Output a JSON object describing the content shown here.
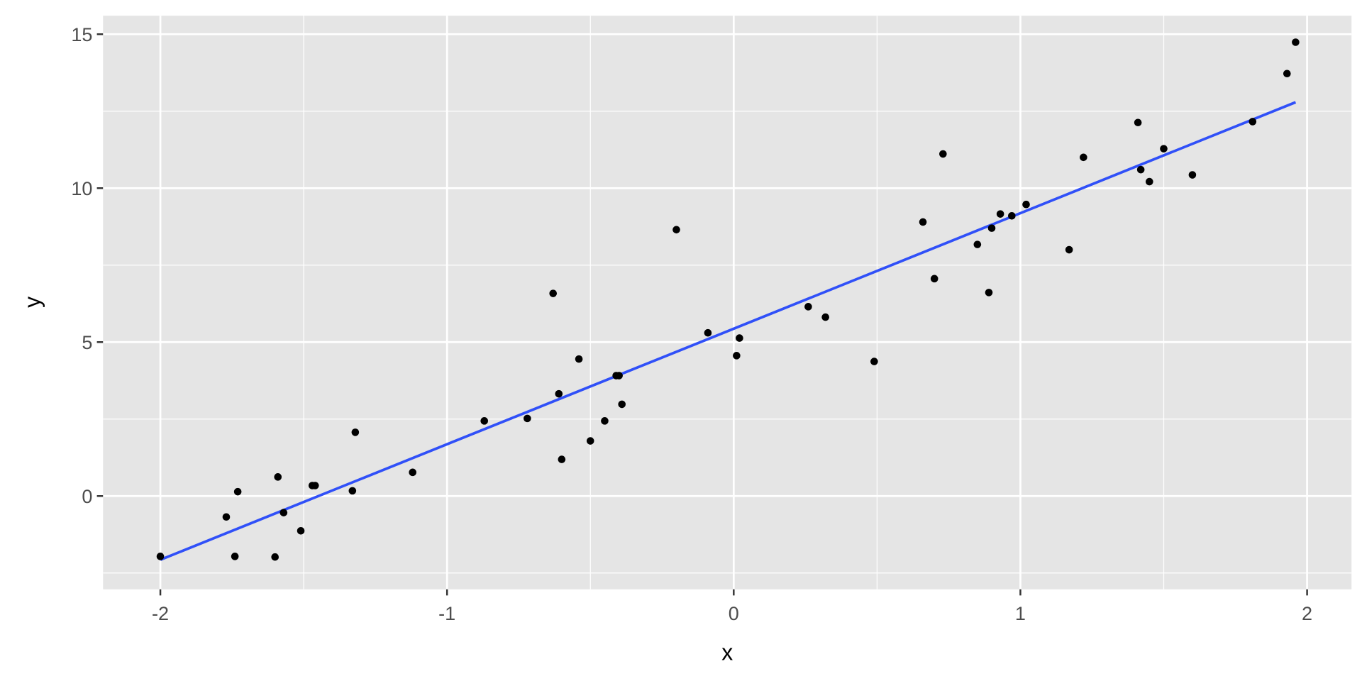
{
  "chart_data": {
    "type": "scatter",
    "title": "",
    "xlabel": "x",
    "ylabel": "y",
    "xlim": [
      -2.2,
      2.155
    ],
    "ylim": [
      -3.03,
      15.6
    ],
    "grid": true,
    "x_ticks": [
      -2,
      -1,
      0,
      1,
      2
    ],
    "x_tick_labels": [
      "-2",
      "-1",
      "0",
      "1",
      "2"
    ],
    "y_ticks": [
      0,
      5,
      10,
      15
    ],
    "y_tick_labels": [
      "0",
      "5",
      "10",
      "15"
    ],
    "x_minor": [
      -1.5,
      -0.5,
      0.5,
      1.5
    ],
    "y_minor": [
      -2.5,
      2.5,
      7.5,
      12.5
    ],
    "colors": {
      "panel": "#e5e5e5",
      "grid": "#ffffff",
      "points": "#000000",
      "fit_line": "#3050f8",
      "text": "#4d4d4d"
    },
    "points": [
      [
        -2.0,
        -1.96
      ],
      [
        -1.77,
        -0.68
      ],
      [
        -1.73,
        0.14
      ],
      [
        -1.74,
        -1.96
      ],
      [
        -1.6,
        -1.98
      ],
      [
        -1.59,
        0.62
      ],
      [
        -1.57,
        -0.54
      ],
      [
        -1.51,
        -1.13
      ],
      [
        -1.47,
        0.34
      ],
      [
        -1.46,
        0.34
      ],
      [
        -1.33,
        0.17
      ],
      [
        -1.32,
        2.07
      ],
      [
        -1.12,
        0.77
      ],
      [
        -0.87,
        2.44
      ],
      [
        -0.72,
        2.52
      ],
      [
        -0.63,
        6.58
      ],
      [
        -0.61,
        3.32
      ],
      [
        -0.6,
        1.19
      ],
      [
        -0.54,
        4.45
      ],
      [
        -0.5,
        1.79
      ],
      [
        -0.45,
        2.44
      ],
      [
        -0.41,
        3.91
      ],
      [
        -0.4,
        3.91
      ],
      [
        -0.39,
        2.98
      ],
      [
        -0.2,
        8.65
      ],
      [
        -0.09,
        5.3
      ],
      [
        0.01,
        4.56
      ],
      [
        0.02,
        5.13
      ],
      [
        0.26,
        6.15
      ],
      [
        0.32,
        5.81
      ],
      [
        0.49,
        4.37
      ],
      [
        0.66,
        8.9
      ],
      [
        0.7,
        7.06
      ],
      [
        0.73,
        11.11
      ],
      [
        0.85,
        8.17
      ],
      [
        0.89,
        6.61
      ],
      [
        0.9,
        8.7
      ],
      [
        0.93,
        9.16
      ],
      [
        0.97,
        9.1
      ],
      [
        1.02,
        9.47
      ],
      [
        1.17,
        8.0
      ],
      [
        1.22,
        11.0
      ],
      [
        1.41,
        12.13
      ],
      [
        1.42,
        10.6
      ],
      [
        1.45,
        10.21
      ],
      [
        1.5,
        11.28
      ],
      [
        1.6,
        10.43
      ],
      [
        1.81,
        12.16
      ],
      [
        1.93,
        13.72
      ],
      [
        1.96,
        14.74
      ]
    ],
    "fit_line": {
      "type": "linear",
      "x": [
        -2.0,
        1.96
      ],
      "y": [
        -2.07,
        12.79
      ]
    }
  }
}
